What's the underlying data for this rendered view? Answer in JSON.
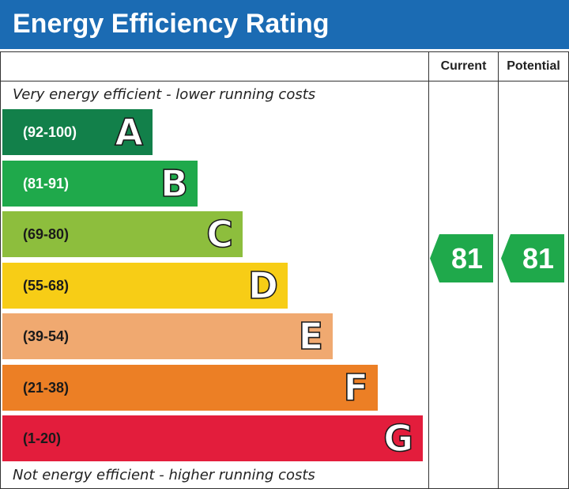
{
  "header": {
    "title": "Energy Efficiency Rating"
  },
  "columns": {
    "current_label": "Current",
    "potential_label": "Potential"
  },
  "captions": {
    "top": "Very energy efficient - lower running costs",
    "bottom": "Not energy efficient - higher running costs"
  },
  "chart_data": {
    "type": "bar",
    "title": "Energy Efficiency Rating",
    "categories": [
      "A",
      "B",
      "C",
      "D",
      "E",
      "F",
      "G"
    ],
    "bands": [
      {
        "letter": "A",
        "range": "(92-100)",
        "color": "#12804a",
        "text_color": "#ffffff"
      },
      {
        "letter": "B",
        "range": "(81-91)",
        "color": "#1fa94b",
        "text_color": "#ffffff"
      },
      {
        "letter": "C",
        "range": "(69-80)",
        "color": "#8dbe3d",
        "text_color": "#1a1a1a"
      },
      {
        "letter": "D",
        "range": "(55-68)",
        "color": "#f7cd16",
        "text_color": "#1a1a1a"
      },
      {
        "letter": "E",
        "range": "(39-54)",
        "color": "#f0a970",
        "text_color": "#1a1a1a"
      },
      {
        "letter": "F",
        "range": "(21-38)",
        "color": "#ec7f25",
        "text_color": "#1a1a1a"
      },
      {
        "letter": "G",
        "range": "(1-20)",
        "color": "#e31d3c",
        "text_color": "#1a1a1a"
      }
    ],
    "current": {
      "value": "81",
      "band": "B",
      "color": "#1fa94b"
    },
    "potential": {
      "value": "81",
      "band": "B",
      "color": "#1fa94b"
    }
  }
}
